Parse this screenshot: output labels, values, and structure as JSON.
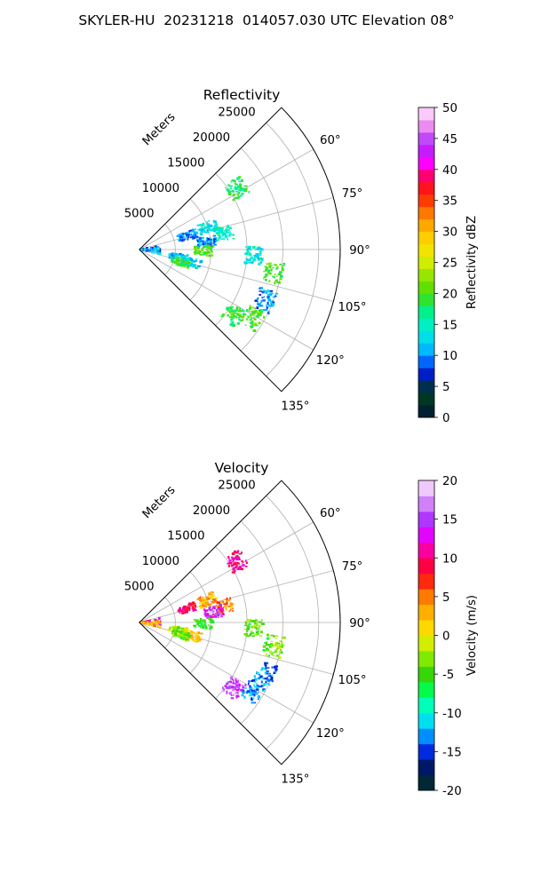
{
  "title": "SKYLER-HU  20231218  014057.030 UTC Elevation 08°",
  "chart_data": [
    {
      "type": "polar-sector",
      "title": "Reflectivity",
      "radial_label": "Meters",
      "r_ticks": [
        "5000",
        "10000",
        "15000",
        "20000",
        "25000"
      ],
      "r_max": 28000,
      "theta_range_deg": [
        45,
        135
      ],
      "theta_ticks": [
        "60°",
        "75°",
        "90°",
        "105°",
        "120°",
        "135°"
      ],
      "grid": true,
      "colorbar": {
        "label": "Reflectivity dBZ",
        "range": [
          0,
          50
        ],
        "ticks": [
          "0",
          "5",
          "10",
          "15",
          "20",
          "25",
          "30",
          "35",
          "40",
          "45",
          "50"
        ]
      },
      "echo_clusters": [
        {
          "az": 58,
          "r": 16000,
          "value": 18
        },
        {
          "az": 72,
          "r": 10000,
          "value": 13
        },
        {
          "az": 74,
          "r": 7000,
          "value": 10
        },
        {
          "az": 79,
          "r": 12000,
          "value": 15
        },
        {
          "az": 84,
          "r": 9500,
          "value": 10
        },
        {
          "az": 91,
          "r": 9000,
          "value": 20
        },
        {
          "az": 93,
          "r": 16000,
          "value": 14
        },
        {
          "az": 100,
          "r": 19000,
          "value": 20
        },
        {
          "az": 101,
          "r": 5500,
          "value": 12
        },
        {
          "az": 104,
          "r": 7500,
          "value": 13
        },
        {
          "az": 107,
          "r": 6000,
          "value": 19
        },
        {
          "az": 112,
          "r": 19000,
          "value": 10
        },
        {
          "az": 121,
          "r": 18500,
          "value": 20
        },
        {
          "az": 125,
          "r": 16000,
          "value": 19
        },
        {
          "az": 88,
          "r": 1200,
          "value": 8
        },
        {
          "az": 95,
          "r": 1200,
          "value": 11
        }
      ]
    },
    {
      "type": "polar-sector",
      "title": "Velocity",
      "radial_label": "Meters",
      "r_ticks": [
        "5000",
        "10000",
        "15000",
        "20000",
        "25000"
      ],
      "r_max": 28000,
      "theta_range_deg": [
        45,
        135
      ],
      "theta_ticks": [
        "60°",
        "75°",
        "90°",
        "105°",
        "120°",
        "135°"
      ],
      "grid": true,
      "colorbar": {
        "label": "Velocity (m/s)",
        "range": [
          -20,
          20
        ],
        "ticks": [
          "-20",
          "-15",
          "-10",
          "-5",
          "0",
          "5",
          "10",
          "15",
          "20"
        ]
      },
      "echo_clusters": [
        {
          "az": 58,
          "r": 16000,
          "value": 11
        },
        {
          "az": 72,
          "r": 10000,
          "value": 3
        },
        {
          "az": 74,
          "r": 7000,
          "value": 9
        },
        {
          "az": 79,
          "r": 12000,
          "value": 5
        },
        {
          "az": 82,
          "r": 10500,
          "value": 14
        },
        {
          "az": 91,
          "r": 9000,
          "value": -6
        },
        {
          "az": 93,
          "r": 16000,
          "value": -4
        },
        {
          "az": 100,
          "r": 19000,
          "value": -4
        },
        {
          "az": 101,
          "r": 5500,
          "value": -2
        },
        {
          "az": 104,
          "r": 7500,
          "value": 2
        },
        {
          "az": 107,
          "r": 6000,
          "value": -4
        },
        {
          "az": 112,
          "r": 19000,
          "value": -13
        },
        {
          "az": 121,
          "r": 18500,
          "value": -13
        },
        {
          "az": 125,
          "r": 16000,
          "value": 15
        },
        {
          "az": 88,
          "r": 1200,
          "value": 12
        },
        {
          "az": 95,
          "r": 1200,
          "value": 3
        }
      ]
    }
  ]
}
